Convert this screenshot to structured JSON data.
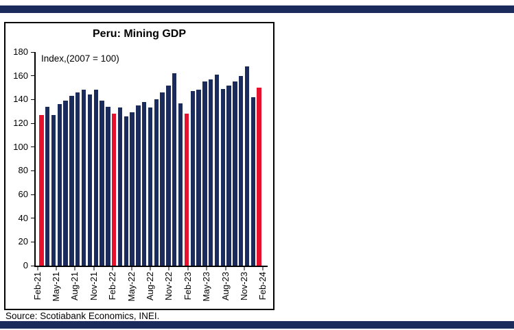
{
  "page": {
    "source": "Source: Scotiabank Economics, INEI."
  },
  "colors": {
    "navy": "#1a2b5c",
    "red": "#e8112d",
    "axis": "#000000",
    "background": "#ffffff"
  },
  "chart_data": {
    "type": "bar",
    "title": "Peru: Mining GDP",
    "annotation": "Index,(2007 = 100)",
    "xlabel": "",
    "ylabel": "",
    "ylim": [
      0,
      180
    ],
    "ytick_step": 20,
    "grid": false,
    "legend": "none",
    "label_every": 3,
    "bar_color": "#1a2b5c",
    "highlight_color": "#e8112d",
    "highlight_note": "February bars shown in red",
    "x_tick_labels": [
      "Feb-21",
      "May-21",
      "Aug-21",
      "Nov-21",
      "Feb-22",
      "May-22",
      "Aug-22",
      "Nov-22",
      "Feb-23",
      "May-23",
      "Aug-23",
      "Nov-23",
      "Feb-24"
    ],
    "points": [
      {
        "label": "Feb-21",
        "value": 127,
        "highlight": true
      },
      {
        "label": "Mar-21",
        "value": 134,
        "highlight": false
      },
      {
        "label": "Apr-21",
        "value": 127,
        "highlight": false
      },
      {
        "label": "May-21",
        "value": 136,
        "highlight": false
      },
      {
        "label": "Jun-21",
        "value": 139,
        "highlight": false
      },
      {
        "label": "Jul-21",
        "value": 143,
        "highlight": false
      },
      {
        "label": "Aug-21",
        "value": 146,
        "highlight": false
      },
      {
        "label": "Sep-21",
        "value": 148,
        "highlight": false
      },
      {
        "label": "Oct-21",
        "value": 144,
        "highlight": false
      },
      {
        "label": "Nov-21",
        "value": 148,
        "highlight": false
      },
      {
        "label": "Dec-21",
        "value": 139,
        "highlight": false
      },
      {
        "label": "Jan-22",
        "value": 134,
        "highlight": false
      },
      {
        "label": "Feb-22",
        "value": 128,
        "highlight": true
      },
      {
        "label": "Mar-22",
        "value": 133,
        "highlight": false
      },
      {
        "label": "Apr-22",
        "value": 126,
        "highlight": false
      },
      {
        "label": "May-22",
        "value": 129,
        "highlight": false
      },
      {
        "label": "Jun-22",
        "value": 135,
        "highlight": false
      },
      {
        "label": "Jul-22",
        "value": 138,
        "highlight": false
      },
      {
        "label": "Aug-22",
        "value": 133,
        "highlight": false
      },
      {
        "label": "Sep-22",
        "value": 140,
        "highlight": false
      },
      {
        "label": "Oct-22",
        "value": 146,
        "highlight": false
      },
      {
        "label": "Nov-22",
        "value": 152,
        "highlight": false
      },
      {
        "label": "Dec-22",
        "value": 162,
        "highlight": false
      },
      {
        "label": "Jan-23",
        "value": 137,
        "highlight": false
      },
      {
        "label": "Feb-23",
        "value": 128,
        "highlight": true
      },
      {
        "label": "Mar-23",
        "value": 147,
        "highlight": false
      },
      {
        "label": "Apr-23",
        "value": 148,
        "highlight": false
      },
      {
        "label": "May-23",
        "value": 155,
        "highlight": false
      },
      {
        "label": "Jun-23",
        "value": 157,
        "highlight": false
      },
      {
        "label": "Jul-23",
        "value": 161,
        "highlight": false
      },
      {
        "label": "Aug-23",
        "value": 149,
        "highlight": false
      },
      {
        "label": "Sep-23",
        "value": 152,
        "highlight": false
      },
      {
        "label": "Oct-23",
        "value": 155,
        "highlight": false
      },
      {
        "label": "Nov-23",
        "value": 160,
        "highlight": false
      },
      {
        "label": "Dec-23",
        "value": 168,
        "highlight": false
      },
      {
        "label": "Jan-24",
        "value": 142,
        "highlight": false
      },
      {
        "label": "Feb-24",
        "value": 150,
        "highlight": true
      }
    ]
  }
}
